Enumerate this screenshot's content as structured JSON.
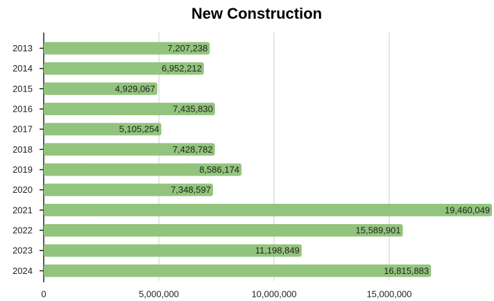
{
  "chart_data": {
    "type": "barh",
    "title": "New Construction",
    "categories": [
      "2013",
      "2014",
      "2015",
      "2016",
      "2017",
      "2018",
      "2019",
      "2020",
      "2021",
      "2022",
      "2023",
      "2024"
    ],
    "values": [
      7207238,
      6952212,
      4929067,
      7435830,
      5105254,
      7428782,
      8586174,
      7348597,
      19460049,
      15589901,
      11198849,
      16815883
    ],
    "value_labels": [
      "7,207,238",
      "6,952,212",
      "4,929,067",
      "7,435,830",
      "5,105,254",
      "7,428,782",
      "8,586,174",
      "7,348,597",
      "19,460,049",
      "15,589,901",
      "11,198,849",
      "16,815,883"
    ],
    "color": "#93c47d",
    "xlim": [
      0,
      19500000
    ],
    "xticks": [
      0,
      {
        "value": 5000000,
        "label": "5,000,000"
      },
      {
        "value": 10000000,
        "label": "10,000,000"
      },
      {
        "value": 15000000,
        "label": "15,000,000"
      }
    ],
    "grid": true
  }
}
